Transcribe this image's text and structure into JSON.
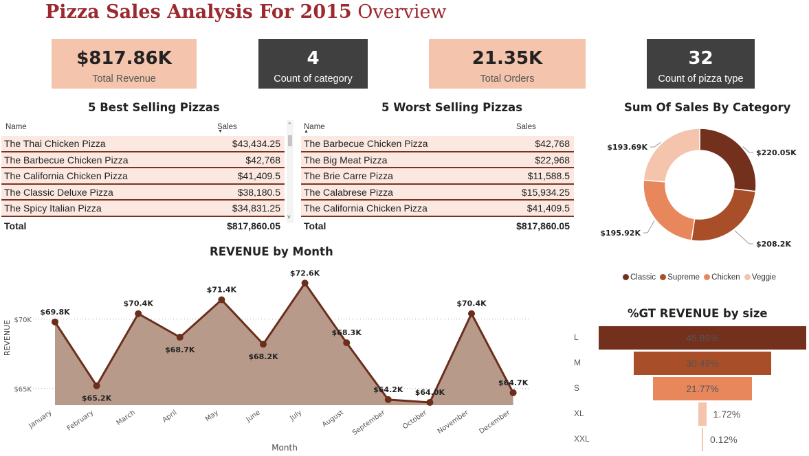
{
  "header": {
    "title_bold": "Pizza Sales Analysis For 2015",
    "title_normal": "Overview"
  },
  "kpis": [
    {
      "value": "$817.86K",
      "label": "Total Revenue"
    },
    {
      "value": "4",
      "label": "Count of category"
    },
    {
      "value": "21.35K",
      "label": "Total Orders"
    },
    {
      "value": "32",
      "label": "Count of pizza type"
    }
  ],
  "best": {
    "title": "5 Best Selling Pizzas",
    "col_name": "Name",
    "col_sales": "Sales",
    "rows": [
      {
        "name": "The Thai Chicken Pizza",
        "sales": "$43,434.25"
      },
      {
        "name": "The Barbecue Chicken Pizza",
        "sales": "$42,768"
      },
      {
        "name": "The California Chicken Pizza",
        "sales": "$41,409.5"
      },
      {
        "name": "The Classic Deluxe Pizza",
        "sales": "$38,180.5"
      },
      {
        "name": "The Spicy Italian Pizza",
        "sales": "$34,831.25"
      }
    ],
    "total_label": "Total",
    "total_value": "$817,860.05"
  },
  "worst": {
    "title": "5 Worst Selling Pizzas",
    "col_name": "Name",
    "col_sales": "Sales",
    "rows": [
      {
        "name": "The Barbecue Chicken Pizza",
        "sales": "$42,768"
      },
      {
        "name": "The Big Meat Pizza",
        "sales": "$22,968"
      },
      {
        "name": "The Brie Carre Pizza",
        "sales": "$11,588.5"
      },
      {
        "name": "The Calabrese Pizza",
        "sales": "$15,934.25"
      },
      {
        "name": "The California Chicken Pizza",
        "sales": "$41,409.5"
      }
    ],
    "total_label": "Total",
    "total_value": "$817,860.05"
  },
  "colors": {
    "classic": "#73301c",
    "supreme": "#a84e28",
    "chicken": "#e8875c",
    "veggie": "#f4c4ad",
    "line": "#6b2e1c",
    "area": "#b89a8b"
  },
  "chart_data": [
    {
      "type": "area",
      "title": "REVENUE by Month",
      "xlabel": "Month",
      "ylabel": "REVENUE",
      "categories": [
        "January",
        "February",
        "March",
        "April",
        "May",
        "June",
        "July",
        "August",
        "September",
        "October",
        "November",
        "December"
      ],
      "values": [
        69.8,
        65.2,
        70.4,
        68.7,
        71.4,
        68.2,
        72.6,
        68.3,
        64.2,
        64.0,
        70.4,
        64.7
      ],
      "data_labels": [
        "$69.8K",
        "$65.2K",
        "$70.4K",
        "$68.7K",
        "$71.4K",
        "$68.2K",
        "$72.6K",
        "$68.3K",
        "$64.2K",
        "$64.0K",
        "$70.4K",
        "$64.7K"
      ],
      "yticks": [
        65,
        70
      ],
      "ytick_labels": [
        "$65K",
        "$70K"
      ],
      "ylim": [
        63.8,
        74.2
      ],
      "grid": true
    },
    {
      "type": "pie",
      "title": "Sum Of Sales By Category",
      "categories": [
        "Classic",
        "Supreme",
        "Chicken",
        "Veggie"
      ],
      "values": [
        220.05,
        208.2,
        195.92,
        193.69
      ],
      "data_labels": [
        "$220.05K",
        "$208.2K",
        "$195.92K",
        "$193.69K"
      ],
      "donut": true,
      "legend": "bottom"
    },
    {
      "type": "bar",
      "title": "%GT REVENUE by size",
      "categories": [
        "L",
        "M",
        "S",
        "XL",
        "XXL"
      ],
      "values": [
        45.89,
        30.49,
        21.77,
        1.72,
        0.12
      ],
      "data_labels": [
        "45.89%",
        "30.49%",
        "21.77%",
        "1.72%",
        "0.12%"
      ],
      "funnel": true
    }
  ]
}
